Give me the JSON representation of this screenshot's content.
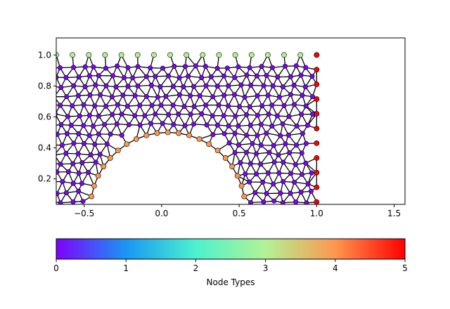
{
  "chart_data": {
    "type": "scatter",
    "title": "",
    "xlabel": "",
    "ylabel": "",
    "xlim": [
      -0.68,
      1.57
    ],
    "ylim": [
      0.035,
      1.11
    ],
    "x_ticks": [
      -0.5,
      0.0,
      0.5,
      1.0,
      1.5
    ],
    "x_tick_labels": [
      "−0.5",
      "0.0",
      "0.5",
      "1.0",
      "1.5"
    ],
    "y_ticks": [
      0.2,
      0.4,
      0.6,
      0.8,
      1.0
    ],
    "y_tick_labels": [
      "0.2",
      "0.4",
      "0.6",
      "0.8",
      "1.0"
    ],
    "grid": false,
    "mesh": "triangulated interior mesh; nodes coloured by node type",
    "colormap": "rainbow",
    "colorbar": {
      "label": "Node Types",
      "range": [
        0,
        5
      ],
      "ticks": [
        0,
        1,
        2,
        3,
        4,
        5
      ],
      "tick_labels": [
        "0",
        "1",
        "2",
        "3",
        "4",
        "5"
      ]
    },
    "node_type_colors": {
      "0": "#7f00ff",
      "1": "#1996f3",
      "2": "#4cf2ce",
      "3": "#b2f295",
      "4": "#ff964f",
      "5": "#ff0000"
    },
    "node_groups": [
      {
        "type": 3,
        "description": "top boundary",
        "y": 1.0,
        "x_from": -0.68,
        "x_to": 1.0,
        "count": 17
      },
      {
        "type": 4,
        "description": "cylinder boundary",
        "center": [
          0.04,
          0.0
        ],
        "radius": 0.5,
        "angle_from": 10,
        "angle_to": 170,
        "count": 21
      },
      {
        "type": 5,
        "description": "right boundary",
        "x": 1.0,
        "y_from": 0.05,
        "y_to": 1.0,
        "count": 11
      },
      {
        "type": 0,
        "description": "interior nodes",
        "count": "many"
      }
    ]
  }
}
